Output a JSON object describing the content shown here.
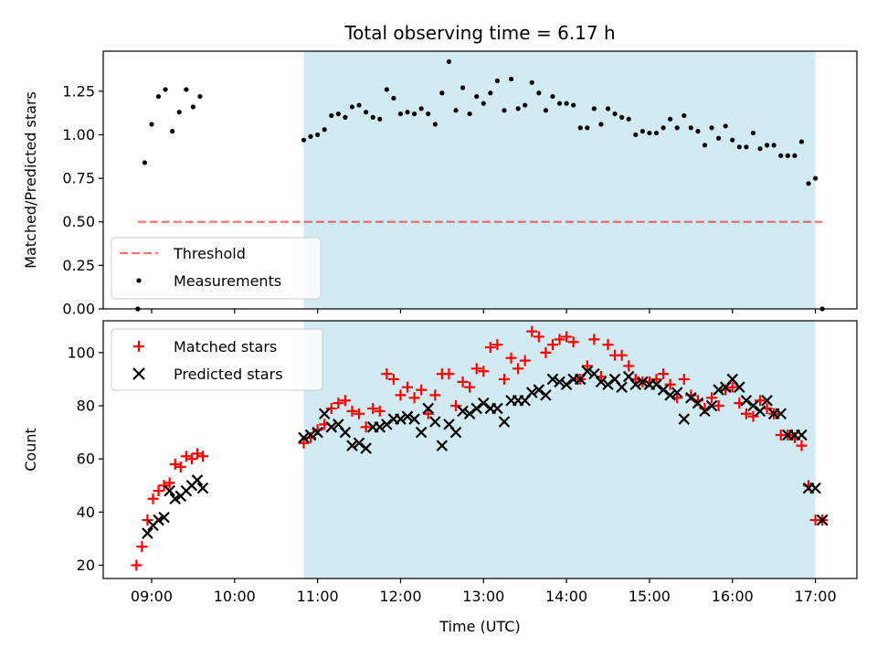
{
  "chart_data": [
    {
      "type": "scatter",
      "title": "Total observing time = 6.17 h",
      "xlabel": "",
      "ylabel": "Matched/Predicted stars",
      "ylim": [
        0.0,
        1.48
      ],
      "yticks": [
        "0.00",
        "0.25",
        "0.50",
        "0.75",
        "1.00",
        "1.25"
      ],
      "shaded_interval": [
        "10:50",
        "17:00"
      ],
      "shade_color": "#add8e6",
      "threshold": {
        "name": "Threshold",
        "value": 0.5,
        "x_from": "08:50",
        "x_to": "17:05",
        "color": "#ff0000"
      },
      "series": [
        {
          "name": "Measurements",
          "color": "#000000",
          "marker": "dot",
          "x": [
            "08:50",
            "08:55",
            "09:00",
            "09:05",
            "09:10",
            "09:15",
            "09:20",
            "09:25",
            "09:30",
            "09:35",
            "10:50",
            "10:55",
            "11:00",
            "11:05",
            "11:10",
            "11:15",
            "11:20",
            "11:25",
            "11:30",
            "11:35",
            "11:40",
            "11:45",
            "11:50",
            "11:55",
            "12:00",
            "12:05",
            "12:10",
            "12:15",
            "12:20",
            "12:25",
            "12:30",
            "12:35",
            "12:40",
            "12:45",
            "12:50",
            "12:55",
            "13:00",
            "13:05",
            "13:10",
            "13:15",
            "13:20",
            "13:25",
            "13:30",
            "13:35",
            "13:40",
            "13:45",
            "13:50",
            "13:55",
            "14:00",
            "14:05",
            "14:10",
            "14:15",
            "14:20",
            "14:25",
            "14:30",
            "14:35",
            "14:40",
            "14:45",
            "14:50",
            "14:55",
            "15:00",
            "15:05",
            "15:10",
            "15:15",
            "15:20",
            "15:25",
            "15:30",
            "15:35",
            "15:40",
            "15:45",
            "15:50",
            "15:55",
            "16:00",
            "16:05",
            "16:10",
            "16:15",
            "16:20",
            "16:25",
            "16:30",
            "16:35",
            "16:40",
            "16:45",
            "16:50",
            "16:55",
            "17:00",
            "17:05"
          ],
          "y": [
            0.0,
            0.84,
            1.06,
            1.22,
            1.26,
            1.02,
            1.13,
            1.26,
            1.16,
            1.22,
            0.97,
            0.99,
            1.0,
            1.03,
            1.11,
            1.12,
            1.1,
            1.16,
            1.17,
            1.13,
            1.1,
            1.09,
            1.26,
            1.21,
            1.12,
            1.13,
            1.12,
            1.15,
            1.12,
            1.06,
            1.24,
            1.42,
            1.14,
            1.27,
            1.12,
            1.22,
            1.18,
            1.24,
            1.31,
            1.14,
            1.32,
            1.15,
            1.17,
            1.3,
            1.24,
            1.14,
            1.22,
            1.18,
            1.18,
            1.17,
            1.04,
            1.04,
            1.15,
            1.06,
            1.15,
            1.12,
            1.1,
            1.09,
            1.0,
            1.02,
            1.01,
            1.01,
            1.04,
            1.09,
            1.04,
            1.11,
            1.04,
            1.02,
            0.94,
            1.04,
            0.98,
            1.05,
            0.97,
            0.93,
            0.93,
            1.01,
            0.92,
            0.94,
            0.94,
            0.88,
            0.88,
            0.88,
            0.96,
            0.72,
            0.75,
            0.0
          ]
        }
      ]
    },
    {
      "type": "scatter",
      "title": "",
      "xlabel": "Time (UTC)",
      "ylabel": "Count",
      "ylim": [
        15,
        112
      ],
      "yticks": [
        "20",
        "40",
        "60",
        "80",
        "100"
      ],
      "xlim": [
        "08:25",
        "17:30"
      ],
      "xticks": [
        "09:00",
        "10:00",
        "11:00",
        "12:00",
        "13:00",
        "14:00",
        "15:00",
        "16:00",
        "17:00"
      ],
      "shaded_interval": [
        "10:50",
        "17:00"
      ],
      "shade_color": "#add8e6",
      "series": [
        {
          "name": "Matched stars",
          "color": "#ff0000",
          "marker": "plus",
          "x": [
            "08:49",
            "08:53",
            "08:57",
            "09:01",
            "09:05",
            "09:09",
            "09:13",
            "09:17",
            "09:21",
            "09:25",
            "09:29",
            "09:33",
            "09:37",
            "10:50",
            "10:55",
            "11:00",
            "11:05",
            "11:10",
            "11:15",
            "11:20",
            "11:25",
            "11:30",
            "11:35",
            "11:40",
            "11:45",
            "11:50",
            "11:55",
            "12:00",
            "12:05",
            "12:10",
            "12:15",
            "12:20",
            "12:25",
            "12:30",
            "12:35",
            "12:40",
            "12:45",
            "12:50",
            "12:55",
            "13:00",
            "13:05",
            "13:10",
            "13:15",
            "13:20",
            "13:25",
            "13:30",
            "13:35",
            "13:40",
            "13:45",
            "13:50",
            "13:55",
            "14:00",
            "14:05",
            "14:10",
            "14:15",
            "14:20",
            "14:25",
            "14:30",
            "14:35",
            "14:40",
            "14:45",
            "14:50",
            "14:55",
            "15:00",
            "15:05",
            "15:10",
            "15:15",
            "15:20",
            "15:25",
            "15:30",
            "15:35",
            "15:40",
            "15:45",
            "15:50",
            "15:55",
            "16:00",
            "16:05",
            "16:10",
            "16:15",
            "16:20",
            "16:25",
            "16:30",
            "16:35",
            "16:40",
            "16:45",
            "16:50",
            "16:55",
            "17:00",
            "17:05"
          ],
          "y": [
            20,
            27,
            37,
            45,
            48,
            50,
            51,
            58,
            57,
            61,
            60,
            62,
            61,
            66,
            68,
            71,
            73,
            79,
            81,
            82,
            78,
            77,
            72,
            79,
            78,
            92,
            90,
            84,
            87,
            83,
            86,
            77,
            84,
            92,
            92,
            80,
            89,
            87,
            94,
            93,
            102,
            103,
            90,
            98,
            94,
            97,
            108,
            106,
            100,
            103,
            105,
            106,
            104,
            90,
            95,
            105,
            91,
            103,
            99,
            99,
            95,
            90,
            89,
            89,
            90,
            92,
            88,
            83,
            90,
            84,
            82,
            79,
            83,
            80,
            86,
            87,
            81,
            77,
            76,
            82,
            79,
            77,
            69,
            69,
            68,
            65,
            50,
            37,
            37
          ]
        },
        {
          "name": "Predicted stars",
          "color": "#000000",
          "marker": "cross",
          "x": [
            "08:57",
            "09:01",
            "09:05",
            "09:09",
            "09:13",
            "09:17",
            "09:21",
            "09:25",
            "09:29",
            "09:33",
            "09:37",
            "10:50",
            "10:55",
            "11:00",
            "11:05",
            "11:10",
            "11:15",
            "11:20",
            "11:25",
            "11:30",
            "11:35",
            "11:40",
            "11:45",
            "11:50",
            "11:55",
            "12:00",
            "12:05",
            "12:10",
            "12:15",
            "12:20",
            "12:25",
            "12:30",
            "12:35",
            "12:40",
            "12:45",
            "12:50",
            "12:55",
            "13:00",
            "13:05",
            "13:10",
            "13:15",
            "13:20",
            "13:25",
            "13:30",
            "13:35",
            "13:40",
            "13:45",
            "13:50",
            "13:55",
            "14:00",
            "14:05",
            "14:10",
            "14:15",
            "14:20",
            "14:25",
            "14:30",
            "14:35",
            "14:40",
            "14:45",
            "14:50",
            "14:55",
            "15:00",
            "15:05",
            "15:10",
            "15:15",
            "15:20",
            "15:25",
            "15:30",
            "15:35",
            "15:40",
            "15:45",
            "15:50",
            "15:55",
            "16:00",
            "16:05",
            "16:10",
            "16:15",
            "16:20",
            "16:25",
            "16:30",
            "16:35",
            "16:40",
            "16:45",
            "16:50",
            "16:55",
            "17:00",
            "17:05"
          ],
          "y": [
            32,
            35,
            37,
            38,
            48,
            45,
            46,
            48,
            50,
            52,
            49,
            68,
            69,
            70,
            77,
            72,
            73,
            70,
            65,
            66,
            64,
            72,
            72,
            73,
            75,
            75,
            76,
            75,
            70,
            79,
            74,
            65,
            73,
            70,
            78,
            77,
            79,
            81,
            79,
            79,
            74,
            82,
            82,
            82,
            85,
            86,
            84,
            90,
            89,
            88,
            90,
            90,
            93,
            92,
            89,
            88,
            90,
            87,
            91,
            88,
            89,
            88,
            88,
            86,
            84,
            85,
            75,
            83,
            81,
            78,
            80,
            86,
            87,
            90,
            87,
            82,
            80,
            78,
            82,
            77,
            77,
            69,
            69,
            69,
            49,
            49,
            37
          ]
        }
      ]
    }
  ]
}
